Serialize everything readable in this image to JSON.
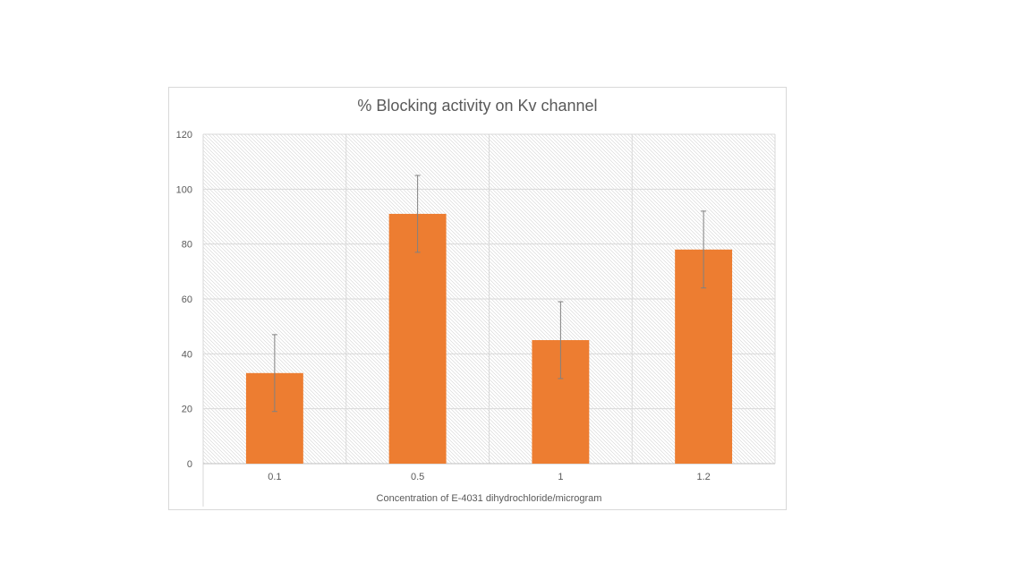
{
  "chart_data": {
    "type": "bar",
    "title": "% Blocking activity on Kv channel",
    "xlabel": "Concentration of E-4031 dihydrochloride/microgram",
    "ylabel": "",
    "categories": [
      "0.1",
      "0.5",
      "1",
      "1.2"
    ],
    "series": [
      {
        "values": [
          33,
          91,
          45,
          78
        ],
        "error": [
          14,
          14,
          14,
          14
        ]
      }
    ],
    "ylim": [
      0,
      120
    ],
    "yticks": [
      0,
      20,
      40,
      60,
      80,
      100,
      120
    ],
    "grid": true,
    "legend": "none",
    "bar_color": "#ED7D31",
    "grid_color": "#d9d9d9",
    "text_color": "#595959",
    "error_bar_color": "#808080"
  }
}
